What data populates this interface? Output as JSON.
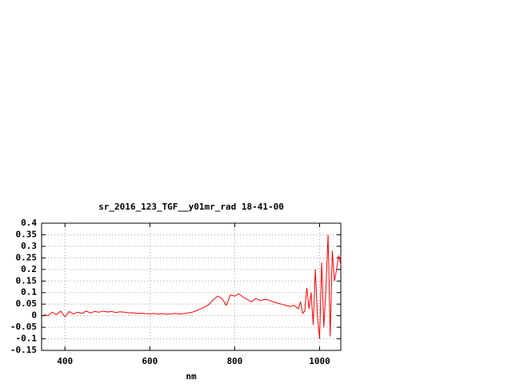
{
  "chart_data": {
    "type": "line",
    "title": "sr_2016_123_TGF__y01mr_rad 18-41-00",
    "x_label": "nm",
    "x": [
      350,
      360,
      370,
      380,
      390,
      400,
      410,
      420,
      430,
      440,
      450,
      460,
      470,
      480,
      490,
      500,
      510,
      520,
      530,
      540,
      550,
      560,
      570,
      580,
      590,
      600,
      610,
      620,
      630,
      640,
      650,
      660,
      670,
      680,
      690,
      700,
      710,
      720,
      730,
      740,
      750,
      760,
      770,
      780,
      790,
      800,
      810,
      820,
      830,
      840,
      850,
      860,
      870,
      880,
      890,
      900,
      910,
      920,
      930,
      940,
      950,
      955,
      960,
      965,
      970,
      975,
      980,
      985,
      990,
      995,
      1000,
      1005,
      1010,
      1015,
      1020,
      1025,
      1030,
      1035,
      1040,
      1045,
      1050
    ],
    "series": [
      {
        "color": "#ff0000",
        "values": [
          0.005,
          0.0,
          0.015,
          0.005,
          0.02,
          -0.005,
          0.018,
          0.008,
          0.015,
          0.01,
          0.02,
          0.012,
          0.018,
          0.015,
          0.02,
          0.016,
          0.018,
          0.014,
          0.017,
          0.015,
          0.012,
          0.013,
          0.01,
          0.011,
          0.009,
          0.008,
          0.01,
          0.007,
          0.009,
          0.006,
          0.008,
          0.01,
          0.007,
          0.009,
          0.012,
          0.015,
          0.022,
          0.03,
          0.038,
          0.05,
          0.07,
          0.085,
          0.075,
          0.045,
          0.09,
          0.085,
          0.095,
          0.08,
          0.07,
          0.06,
          0.075,
          0.065,
          0.07,
          0.068,
          0.06,
          0.055,
          0.05,
          0.045,
          0.04,
          0.045,
          0.03,
          0.06,
          0.01,
          0.02,
          0.12,
          0.03,
          0.1,
          -0.04,
          0.2,
          0.0,
          -0.1,
          0.23,
          -0.05,
          0.12,
          0.35,
          -0.09,
          0.28,
          0.15,
          0.2,
          0.26,
          0.22
        ]
      }
    ],
    "xlim": [
      345,
      1050
    ],
    "xticks": [
      400,
      600,
      800,
      1000
    ],
    "ylim": [
      -0.15,
      0.4
    ],
    "yticks": [
      -0.15,
      -0.1,
      -0.05,
      0,
      0.05,
      0.1,
      0.15,
      0.2,
      0.25,
      0.3,
      0.35,
      0.4
    ],
    "grid": true
  }
}
